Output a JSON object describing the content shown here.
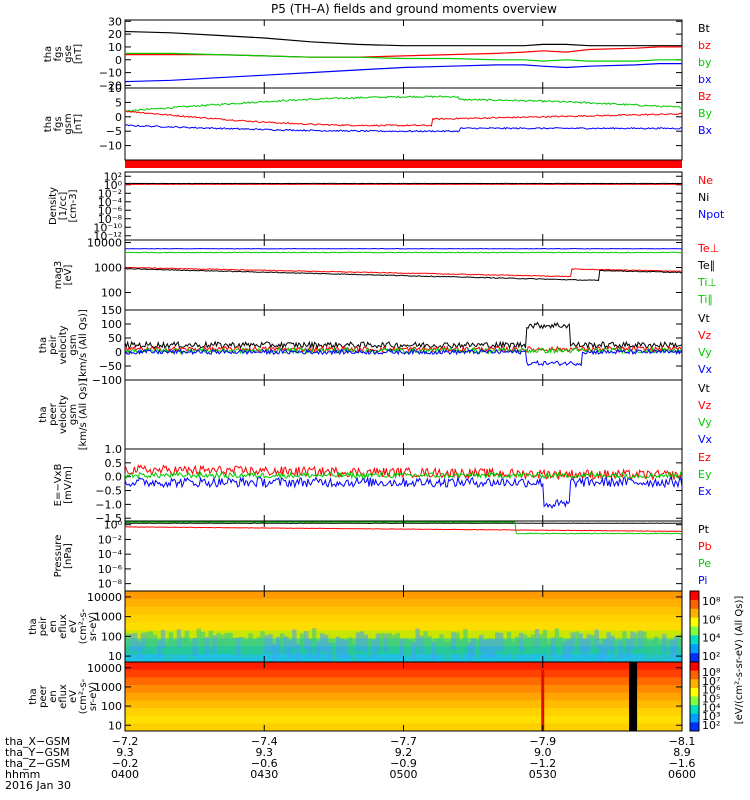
{
  "title": "P5 (TH–A) fields and ground moments overview",
  "panels": [
    {
      "ylabel": [
        "tha",
        "fgs",
        "gse",
        "[nT]"
      ],
      "ticks": [
        "30",
        "20",
        "10",
        "0",
        "−10",
        "−20"
      ],
      "tick_values": [
        30,
        20,
        10,
        0,
        -10,
        -20
      ],
      "ylim": [
        -22,
        31
      ],
      "scale": "linear",
      "legend": [
        {
          "text": "Bt",
          "color": "#000000"
        },
        {
          "text": "bz",
          "color": "#ff0000"
        },
        {
          "text": "by",
          "color": "#00cc00"
        },
        {
          "text": "bx",
          "color": "#0000ff"
        }
      ]
    },
    {
      "ylabel": [
        "tha",
        "fgs",
        "gsm",
        "[nT]"
      ],
      "ticks": [
        "10",
        "5",
        "0",
        "−5",
        "−10"
      ],
      "tick_values": [
        10,
        5,
        0,
        -5,
        -10
      ],
      "ylim": [
        -15,
        10
      ],
      "scale": "linear",
      "legend": [
        {
          "text": "Bz",
          "color": "#ff0000"
        },
        {
          "text": "By",
          "color": "#00cc00"
        },
        {
          "text": "Bx",
          "color": "#0000ff"
        }
      ]
    },
    {
      "ylabel": [
        "Density",
        "[1/cc]",
        "[cm-3]"
      ],
      "ticks": [
        "10²",
        "10⁰",
        "10⁻²",
        "10⁻⁴",
        "10⁻⁶",
        "10⁻⁸",
        "10⁻¹⁰",
        "10⁻¹²"
      ],
      "tick_values": [
        2,
        0,
        -2,
        -4,
        -6,
        -8,
        -10,
        -12
      ],
      "ylim": [
        -13,
        3
      ],
      "scale": "log",
      "legend": [
        {
          "text": "Ne",
          "color": "#ff0000"
        },
        {
          "text": "Ni",
          "color": "#000000"
        },
        {
          "text": "Npot",
          "color": "#0000ff"
        }
      ]
    },
    {
      "ylabel": [
        "mag3",
        "[eV]"
      ],
      "ticks": [
        "10000",
        "1000",
        "100"
      ],
      "tick_values": [
        4,
        3,
        2
      ],
      "ylim": [
        1.3,
        4.1
      ],
      "scale": "log",
      "legend": [
        {
          "text": "Te⊥",
          "color": "#ff0000"
        },
        {
          "text": "Te∥",
          "color": "#000000"
        },
        {
          "text": "Ti⊥",
          "color": "#00cc00"
        },
        {
          "text": "Ti∥",
          "color": "#00cc00"
        }
      ]
    },
    {
      "ylabel": [
        "tha",
        "peir",
        "velocity",
        "gsm",
        "[km/s (All Qs)]"
      ],
      "ticks": [
        "150",
        "100",
        "50",
        "0",
        "−50",
        "−100"
      ],
      "tick_values": [
        150,
        100,
        50,
        0,
        -50,
        -100
      ],
      "ylim": [
        -100,
        150
      ],
      "scale": "linear",
      "legend": [
        {
          "text": "Vt",
          "color": "#000000"
        },
        {
          "text": "Vz",
          "color": "#ff0000"
        },
        {
          "text": "Vy",
          "color": "#00cc00"
        },
        {
          "text": "Vx",
          "color": "#0000ff"
        }
      ]
    },
    {
      "ylabel": [
        "tha",
        "peer",
        "velocity",
        "gsm",
        "[km/s (All Qs)]"
      ],
      "ticks": [],
      "tick_values": [],
      "ylim": [
        -100,
        150
      ],
      "scale": "linear",
      "legend": [
        {
          "text": "Vt",
          "color": "#000000"
        },
        {
          "text": "Vz",
          "color": "#ff0000"
        },
        {
          "text": "Vy",
          "color": "#00cc00"
        },
        {
          "text": "Vx",
          "color": "#0000ff"
        }
      ]
    },
    {
      "ylabel": [
        "E=−VxB",
        "[mV/m]"
      ],
      "ticks": [
        "1.0",
        "0.5",
        "0.0",
        "−0.5",
        "−1.0",
        "−1.5"
      ],
      "tick_values": [
        1.0,
        0.5,
        0.0,
        -0.5,
        -1.0,
        -1.5
      ],
      "ylim": [
        -1.6,
        1.0
      ],
      "scale": "linear",
      "legend": [
        {
          "text": "Ez",
          "color": "#ff0000"
        },
        {
          "text": "Ey",
          "color": "#00cc00"
        },
        {
          "text": "Ex",
          "color": "#0000ff"
        }
      ]
    },
    {
      "ylabel": [
        "Pressure",
        "[nPa]"
      ],
      "ticks": [
        "10⁰",
        "10⁻²",
        "10⁻⁴",
        "10⁻⁶",
        "10⁻⁸"
      ],
      "tick_values": [
        0,
        -2,
        -4,
        -6,
        -8
      ],
      "ylim": [
        -9,
        0.5
      ],
      "scale": "log",
      "legend": [
        {
          "text": "Pt",
          "color": "#000000"
        },
        {
          "text": "Pb",
          "color": "#ff0000"
        },
        {
          "text": "Pe",
          "color": "#00cc00"
        },
        {
          "text": "Pi",
          "color": "#0000ff"
        }
      ]
    },
    {
      "ylabel": [
        "tha",
        "peir",
        "en",
        "eflux",
        "eV",
        "(cm²-s-",
        "sr-eV)"
      ],
      "ticks": [
        "10000",
        "1000",
        "100",
        "10"
      ],
      "tick_values": [
        4,
        3,
        2,
        1
      ],
      "ylim": [
        0.7,
        4.3
      ],
      "scale": "log",
      "colorbar": {
        "ticks": [
          "10⁸",
          "10⁶",
          "10⁴",
          "10²"
        ],
        "label": "[eV/(cm²-s-sr-eV) (All Qs)]"
      }
    },
    {
      "ylabel": [
        "tha",
        "peer",
        "en",
        "eflux",
        "eV",
        "(cm²-s-",
        "sr-eV)"
      ],
      "ticks": [
        "10000",
        "1000",
        "100",
        "10"
      ],
      "tick_values": [
        4,
        3,
        2,
        1
      ],
      "ylim": [
        0.7,
        4.3
      ],
      "scale": "log",
      "colorbar": {
        "ticks": [
          "10⁸",
          "10⁷",
          "10⁶",
          "10⁵",
          "10⁴",
          "10³",
          "10²"
        ],
        "label": "[eV/(cm²-s-sr-eV)]"
      }
    }
  ],
  "x_axis": {
    "times": [
      "0400",
      "0430",
      "0500",
      "0530",
      "0600"
    ],
    "time_minutes": [
      0,
      30,
      60,
      90,
      120
    ],
    "rows": [
      {
        "label": "tha_X−GSM",
        "values": [
          "−7.2",
          "−7.4",
          "−7.7",
          "−7.9",
          "−8.1"
        ]
      },
      {
        "label": "tha_Y−GSM",
        "values": [
          "9.3",
          "9.3",
          "9.2",
          "9.0",
          "8.9"
        ]
      },
      {
        "label": "tha_Z−GSM",
        "values": [
          "−0.2",
          "−0.6",
          "−0.9",
          "−1.2",
          "−1.6"
        ]
      },
      {
        "label": "hhmm",
        "values": [
          "0400",
          "0430",
          "0500",
          "0530",
          "0600"
        ]
      }
    ],
    "date": "2016 Jan 30"
  },
  "chart_data": {
    "type": "line",
    "title": "P5 (TH–A) fields and ground moments overview",
    "x_unit": "minutes after 0400",
    "x": [
      0,
      10,
      20,
      30,
      40,
      50,
      60,
      70,
      80,
      86,
      90,
      95,
      100,
      110,
      115,
      120
    ],
    "series": [
      {
        "name": "Bt",
        "values": [
          22,
          21,
          19,
          17,
          14,
          12,
          11,
          11,
          11,
          11,
          12,
          12,
          11,
          11,
          11,
          11
        ]
      },
      {
        "name": "bz",
        "values": [
          4,
          4,
          4,
          3,
          2,
          2,
          3,
          4,
          5,
          6,
          7,
          6,
          8,
          9,
          10,
          10
        ]
      },
      {
        "name": "by",
        "values": [
          5,
          5,
          4,
          3,
          2,
          2,
          1,
          1,
          0,
          0,
          -1,
          0,
          -1,
          -1,
          0,
          0
        ]
      },
      {
        "name": "bx",
        "values": [
          -17,
          -16,
          -14,
          -12,
          -10,
          -8,
          -6,
          -5,
          -4,
          -4,
          -5,
          -6,
          -5,
          -4,
          -3,
          -3
        ]
      }
    ]
  }
}
